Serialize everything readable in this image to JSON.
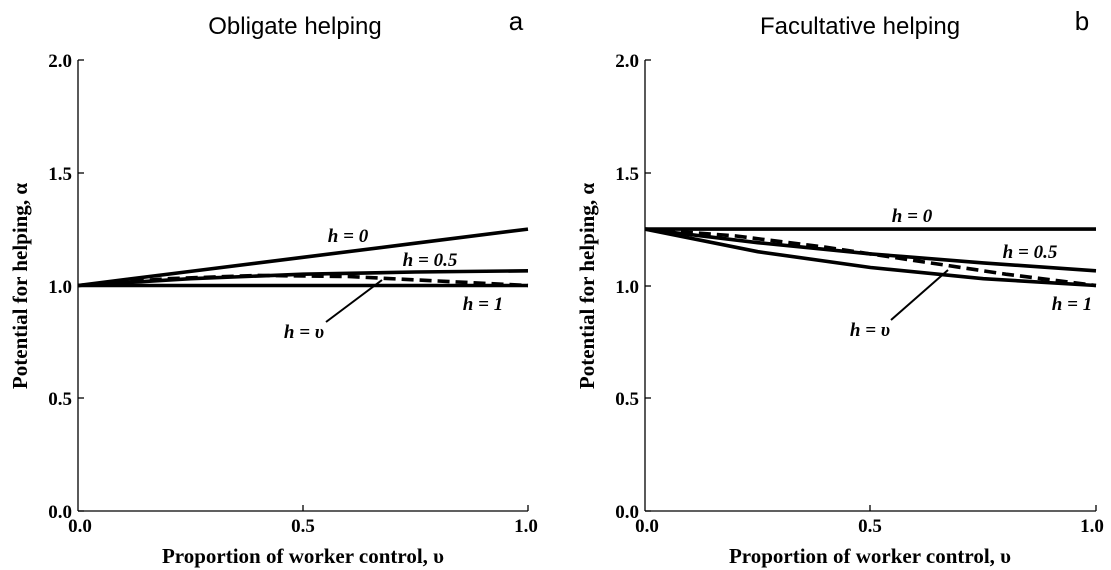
{
  "chart_data": [
    {
      "type": "line",
      "title": "Obligate helping",
      "panel_label": "a",
      "xlabel": "Proportion of worker control, υ",
      "ylabel": "Potential for helping, α",
      "xlim": [
        0.0,
        1.0
      ],
      "ylim": [
        0.0,
        2.0
      ],
      "xticks": [
        "0.0",
        "0.5",
        "1.0"
      ],
      "yticks": [
        "0.0",
        "0.5",
        "1.0",
        "1.5",
        "2.0"
      ],
      "grid": false,
      "series": [
        {
          "name": "h = 0",
          "style": "solid",
          "x": [
            0.0,
            0.25,
            0.5,
            0.75,
            1.0
          ],
          "y": [
            1.0,
            1.0625,
            1.125,
            1.1875,
            1.25
          ]
        },
        {
          "name": "h = 0.5",
          "style": "solid",
          "x": [
            0.0,
            0.25,
            0.5,
            0.75,
            1.0
          ],
          "y": [
            1.0,
            1.03,
            1.05,
            1.06,
            1.065
          ]
        },
        {
          "name": "h = 1",
          "style": "solid",
          "x": [
            0.0,
            0.25,
            0.5,
            0.75,
            1.0
          ],
          "y": [
            1.0,
            1.0,
            1.0,
            1.0,
            1.0
          ]
        },
        {
          "name": "h = υ",
          "style": "dashed",
          "x": [
            0.0,
            0.2,
            0.4,
            0.6,
            0.8,
            1.0
          ],
          "y": [
            1.0,
            1.03,
            1.045,
            1.04,
            1.02,
            1.0
          ]
        }
      ],
      "annotations": [
        {
          "series": "h = 0",
          "text": "h = 0"
        },
        {
          "series": "h = 0.5",
          "text": "h = 0.5"
        },
        {
          "series": "h = 1",
          "text": "h = 1"
        },
        {
          "series": "h = υ",
          "text": "h = υ"
        }
      ]
    },
    {
      "type": "line",
      "title": "Facultative helping",
      "panel_label": "b",
      "xlabel": "Proportion of worker control, υ",
      "ylabel": "Potential for helping, α",
      "xlim": [
        0.0,
        1.0
      ],
      "ylim": [
        0.0,
        2.0
      ],
      "xticks": [
        "0.0",
        "0.5",
        "1.0"
      ],
      "yticks": [
        "0.0",
        "0.5",
        "1.0",
        "1.5",
        "2.0"
      ],
      "grid": false,
      "series": [
        {
          "name": "h = 0",
          "style": "solid",
          "x": [
            0.0,
            0.25,
            0.5,
            0.75,
            1.0
          ],
          "y": [
            1.25,
            1.25,
            1.25,
            1.25,
            1.25
          ]
        },
        {
          "name": "h = 0.5",
          "style": "solid",
          "x": [
            0.0,
            0.25,
            0.5,
            0.75,
            1.0
          ],
          "y": [
            1.25,
            1.19,
            1.14,
            1.1,
            1.065
          ]
        },
        {
          "name": "h = 1",
          "style": "solid",
          "x": [
            0.0,
            0.25,
            0.5,
            0.75,
            1.0
          ],
          "y": [
            1.25,
            1.15,
            1.08,
            1.03,
            1.0
          ]
        },
        {
          "name": "h = υ",
          "style": "dashed",
          "x": [
            0.0,
            0.2,
            0.4,
            0.6,
            0.8,
            1.0
          ],
          "y": [
            1.25,
            1.22,
            1.17,
            1.11,
            1.05,
            1.0
          ]
        }
      ],
      "annotations": [
        {
          "series": "h = 0",
          "text": "h = 0"
        },
        {
          "series": "h = 0.5",
          "text": "h = 0.5"
        },
        {
          "series": "h = 1",
          "text": "h = 1"
        },
        {
          "series": "h = υ",
          "text": "h = υ"
        }
      ]
    }
  ]
}
